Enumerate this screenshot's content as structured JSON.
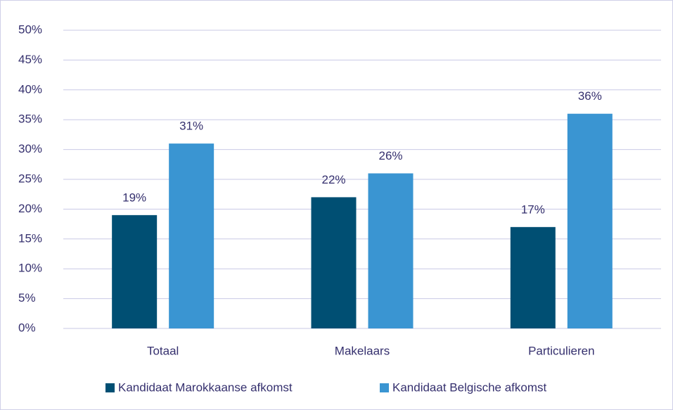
{
  "chart_data": {
    "type": "bar",
    "categories": [
      "Totaal",
      "Makelaars",
      "Particulieren"
    ],
    "series": [
      {
        "name": "Kandidaat Marokkaanse afkomst",
        "color": "#004f73",
        "values": [
          19,
          22,
          17
        ],
        "value_labels": [
          "19%",
          "22%",
          "17%"
        ]
      },
      {
        "name": "Kandidaat Belgische afkomst",
        "color": "#3a95d2",
        "values": [
          31,
          26,
          36
        ],
        "value_labels": [
          "31%",
          "26%",
          "36%"
        ]
      }
    ],
    "ylim": [
      0,
      50
    ],
    "yticks": [
      {
        "value": 0,
        "label": "0%"
      },
      {
        "value": 5,
        "label": "5%"
      },
      {
        "value": 10,
        "label": "10%"
      },
      {
        "value": 15,
        "label": "15%"
      },
      {
        "value": 20,
        "label": "20%"
      },
      {
        "value": 25,
        "label": "25%"
      },
      {
        "value": 30,
        "label": "30%"
      },
      {
        "value": 35,
        "label": "35%"
      },
      {
        "value": 40,
        "label": "40%"
      },
      {
        "value": 45,
        "label": "45%"
      },
      {
        "value": 50,
        "label": "50%"
      }
    ],
    "grid": true,
    "legend": "bottom"
  }
}
